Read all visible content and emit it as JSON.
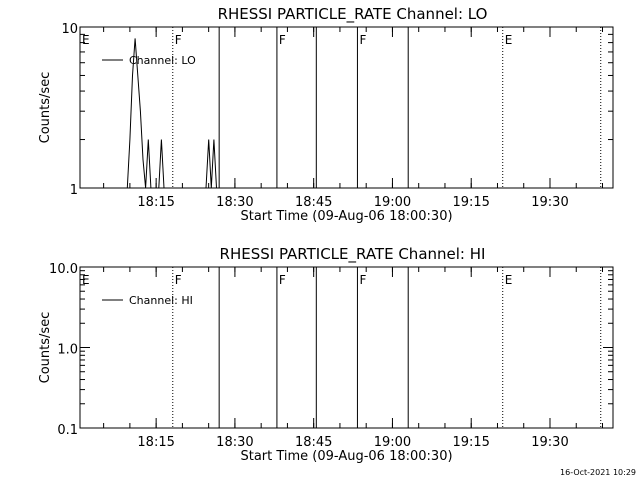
{
  "chart_data": [
    {
      "type": "line",
      "title": "RHESSI  PARTICLE_RATE  Channel:  LO",
      "xlabel": "Start Time (09-Aug-06 18:00:30)",
      "ylabel": "Counts/sec",
      "y_scale": "log",
      "ylim": [
        1,
        10
      ],
      "xlim": [
        "18:00:30",
        "19:42:00"
      ],
      "x_ticks": [
        "18:15",
        "18:30",
        "18:45",
        "19:00",
        "19:15",
        "19:30"
      ],
      "y_ticks": [
        "1",
        "10"
      ],
      "legend": {
        "entries": [
          "Channel: LO"
        ],
        "placement": "top-left"
      },
      "series": [
        {
          "name": "Channel: LO",
          "x": [
            "18:09:30",
            "18:10:00",
            "18:10:30",
            "18:11:00",
            "18:11:30",
            "18:12:00",
            "18:12:30",
            "18:13:00",
            "18:13:30",
            "18:14:00",
            "18:14:30",
            "18:15:00",
            "18:15:30",
            "18:16:00",
            "18:16:30",
            "18:17:00",
            "18:17:30",
            "18:18:00",
            "18:24:30",
            "18:25:00",
            "18:25:30",
            "18:26:00",
            "18:26:30",
            "18:27:00"
          ],
          "y": [
            1,
            2,
            5,
            8.5,
            5,
            3,
            1.5,
            1,
            2,
            1,
            1,
            1,
            1,
            2,
            1,
            1,
            1,
            1,
            1,
            2,
            1,
            2,
            1,
            1
          ]
        }
      ],
      "markers": [
        {
          "time": "18:00:30",
          "label": "E",
          "style": "dotted"
        },
        {
          "time": "18:18:10",
          "label": "F",
          "style": "dotted"
        },
        {
          "time": "18:27:00",
          "label": "",
          "style": "solid"
        },
        {
          "time": "18:38:00",
          "label": "F",
          "style": "solid"
        },
        {
          "time": "18:45:30",
          "label": "",
          "style": "solid"
        },
        {
          "time": "18:53:20",
          "label": "F",
          "style": "solid"
        },
        {
          "time": "19:03:00",
          "label": "",
          "style": "solid"
        },
        {
          "time": "19:21:00",
          "label": "E",
          "style": "dotted"
        },
        {
          "time": "19:39:40",
          "label": "",
          "style": "dotted"
        }
      ]
    },
    {
      "type": "line",
      "title": "RHESSI  PARTICLE_RATE  Channel:  HI",
      "xlabel": "Start Time (09-Aug-06 18:00:30)",
      "ylabel": "Counts/sec",
      "y_scale": "log",
      "ylim": [
        0.1,
        10
      ],
      "xlim": [
        "18:00:30",
        "19:42:00"
      ],
      "x_ticks": [
        "18:15",
        "18:30",
        "18:45",
        "19:00",
        "19:15",
        "19:30"
      ],
      "y_ticks": [
        "0.1",
        "1.0",
        "10.0"
      ],
      "legend": {
        "entries": [
          "Channel: HI"
        ],
        "placement": "top-left"
      },
      "series": [
        {
          "name": "Channel: HI",
          "x": [],
          "y": []
        }
      ],
      "markers": [
        {
          "time": "18:00:30",
          "label": "E",
          "style": "dotted"
        },
        {
          "time": "18:18:10",
          "label": "F",
          "style": "dotted"
        },
        {
          "time": "18:27:00",
          "label": "",
          "style": "solid"
        },
        {
          "time": "18:38:00",
          "label": "F",
          "style": "solid"
        },
        {
          "time": "18:45:30",
          "label": "",
          "style": "solid"
        },
        {
          "time": "18:53:20",
          "label": "F",
          "style": "solid"
        },
        {
          "time": "19:03:00",
          "label": "",
          "style": "solid"
        },
        {
          "time": "19:21:00",
          "label": "E",
          "style": "dotted"
        },
        {
          "time": "19:39:40",
          "label": "",
          "style": "dotted"
        }
      ]
    }
  ],
  "footer": {
    "timestamp": "16-Oct-2021 10:29"
  }
}
